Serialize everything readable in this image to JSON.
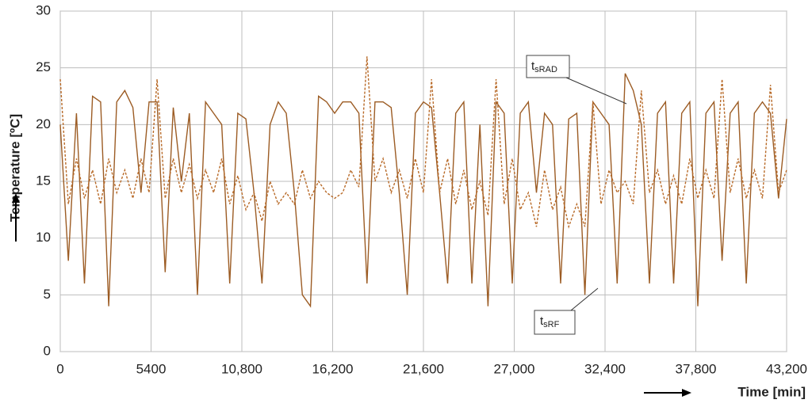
{
  "chart_data": {
    "type": "line",
    "x_label": "Time [min]",
    "y_label": "Temperature [ºC]",
    "xlim": [
      0,
      43200
    ],
    "ylim": [
      0,
      30
    ],
    "xticks": [
      0,
      5400,
      {
        "value": 10800,
        "label": "10,800"
      },
      {
        "value": 16200,
        "label": "16,200"
      },
      {
        "value": 21600,
        "label": "21,600"
      },
      {
        "value": 27000,
        "label": "27,000"
      },
      {
        "value": 32400,
        "label": "32,400"
      },
      {
        "value": 37800,
        "label": "37,800"
      },
      {
        "value": 43200,
        "label": "43,200"
      }
    ],
    "yticks": [
      0,
      5,
      10,
      15,
      20,
      25,
      30
    ],
    "grid": true,
    "x": [
      0,
      480,
      960,
      1440,
      1920,
      2400,
      2880,
      3360,
      3840,
      4320,
      4800,
      5280,
      5760,
      6240,
      6720,
      7200,
      7680,
      8160,
      8640,
      9120,
      9600,
      10080,
      10560,
      11040,
      11520,
      12000,
      12480,
      12960,
      13440,
      13920,
      14400,
      14880,
      15360,
      15840,
      16320,
      16800,
      17280,
      17760,
      18240,
      18720,
      19200,
      19680,
      20160,
      20640,
      21120,
      21600,
      22080,
      22560,
      23040,
      23520,
      24000,
      24480,
      24960,
      25440,
      25920,
      26400,
      26880,
      27360,
      27840,
      28320,
      28800,
      29280,
      29760,
      30240,
      30720,
      31200,
      31680,
      32160,
      32640,
      33120,
      33600,
      34080,
      34560,
      35040,
      35520,
      36000,
      36480,
      36960,
      37440,
      37920,
      38400,
      38880,
      39360,
      39840,
      40320,
      40800,
      41280,
      41760,
      42240,
      42720,
      43200
    ],
    "series": [
      {
        "label": {
          "main": "t",
          "sub": "sRF"
        },
        "color": "#9c5c24",
        "dashed": false,
        "values": [
          20,
          8,
          21,
          6,
          22.5,
          22,
          4,
          22,
          23,
          21.5,
          14,
          22,
          22,
          7,
          21.5,
          15,
          21,
          5,
          22,
          21,
          20,
          6,
          21,
          20.5,
          14,
          6,
          20,
          22,
          21,
          14,
          5,
          4,
          22.5,
          22,
          21,
          22,
          22,
          21,
          6,
          22,
          22,
          21.5,
          14,
          5,
          21,
          22,
          21.5,
          14,
          6,
          21,
          22,
          6,
          20,
          4,
          22,
          21,
          6,
          21,
          22,
          14,
          21,
          20,
          6,
          20.5,
          21,
          5,
          22,
          21,
          20,
          6,
          24.5,
          23,
          20,
          6,
          21,
          22,
          6,
          21,
          22,
          4,
          21,
          22,
          8,
          21,
          22,
          6,
          21,
          22,
          21,
          13.5,
          20.5
        ]
      },
      {
        "label": {
          "main": "t",
          "sub": "sRAD"
        },
        "color": "#b86a28",
        "dashed": true,
        "values": [
          24,
          13,
          17,
          13.5,
          16,
          13,
          17,
          14,
          16,
          13.5,
          17,
          14,
          24,
          13.5,
          17,
          14,
          16.5,
          13.5,
          16,
          14,
          17,
          13,
          15.5,
          12.5,
          14,
          11.5,
          15,
          13,
          14,
          13,
          16,
          13.5,
          15,
          14,
          13.5,
          14,
          16,
          14.5,
          26,
          15,
          17,
          14,
          16,
          13.5,
          17,
          14,
          24,
          14,
          17,
          13,
          16,
          12.5,
          15,
          12,
          24,
          13,
          17,
          12.5,
          14,
          11,
          16,
          12.5,
          14.5,
          11,
          13,
          11,
          22,
          13,
          16,
          14,
          15,
          13,
          23,
          14,
          16,
          13,
          15.5,
          13,
          17,
          13.5,
          16,
          13.5,
          24,
          14,
          17,
          13.5,
          16,
          13.5,
          23.5,
          14,
          16
        ]
      }
    ]
  }
}
